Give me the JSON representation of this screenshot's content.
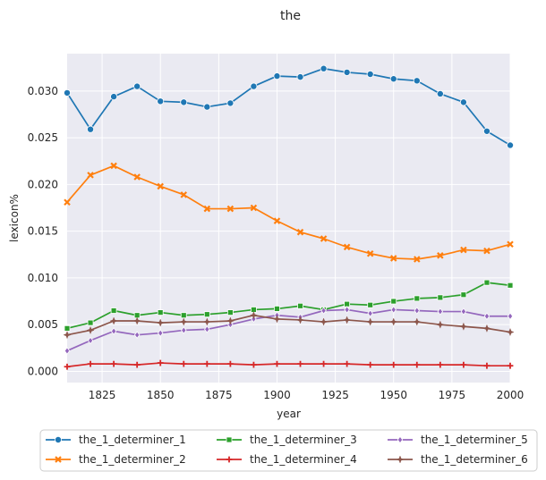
{
  "chart_data": {
    "type": "line",
    "title": "the",
    "xlabel": "year",
    "ylabel": "lexicon%",
    "xlim": [
      1810,
      2000
    ],
    "ylim": [
      -0.0012,
      0.034
    ],
    "xticks": [
      1825,
      1850,
      1875,
      1900,
      1925,
      1950,
      1975,
      2000
    ],
    "yticks": [
      0.0,
      0.005,
      0.01,
      0.015,
      0.02,
      0.025,
      0.03
    ],
    "ytick_labels": [
      "0.000",
      "0.005",
      "0.010",
      "0.015",
      "0.020",
      "0.025",
      "0.030"
    ],
    "grid": true,
    "legend_position": "below",
    "x": [
      1810,
      1820,
      1830,
      1840,
      1850,
      1860,
      1870,
      1880,
      1890,
      1900,
      1910,
      1920,
      1930,
      1940,
      1950,
      1960,
      1970,
      1980,
      1990,
      2000
    ],
    "series": [
      {
        "name": "the_1_determiner_1",
        "color": "#1f77b4",
        "marker": "circle",
        "values": [
          0.0298,
          0.0259,
          0.0294,
          0.0305,
          0.0289,
          0.0288,
          0.0283,
          0.0287,
          0.0305,
          0.0316,
          0.0315,
          0.0324,
          0.032,
          0.0318,
          0.0313,
          0.0311,
          0.0297,
          0.0288,
          0.0257,
          0.0242
        ]
      },
      {
        "name": "the_1_determiner_2",
        "color": "#ff7f0e",
        "marker": "x",
        "values": [
          0.0181,
          0.021,
          0.022,
          0.0208,
          0.0198,
          0.0189,
          0.0174,
          0.0174,
          0.0175,
          0.0161,
          0.0149,
          0.0142,
          0.0133,
          0.0126,
          0.0121,
          0.012,
          0.0124,
          0.013,
          0.0129,
          0.0136
        ]
      },
      {
        "name": "the_1_determiner_3",
        "color": "#2ca02c",
        "marker": "square",
        "values": [
          0.0046,
          0.0052,
          0.0065,
          0.006,
          0.0063,
          0.006,
          0.0061,
          0.0063,
          0.0066,
          0.0067,
          0.007,
          0.0066,
          0.0072,
          0.0071,
          0.0075,
          0.0078,
          0.0079,
          0.0082,
          0.0095,
          0.0092
        ]
      },
      {
        "name": "the_1_determiner_4",
        "color": "#d62728",
        "marker": "plus",
        "values": [
          0.0005,
          0.0008,
          0.0008,
          0.0007,
          0.0009,
          0.0008,
          0.0008,
          0.0008,
          0.0007,
          0.0008,
          0.0008,
          0.0008,
          0.0008,
          0.0007,
          0.0007,
          0.0007,
          0.0007,
          0.0007,
          0.0006,
          0.0006
        ]
      },
      {
        "name": "the_1_determiner_5",
        "color": "#9467bd",
        "marker": "diamond",
        "values": [
          0.0022,
          0.0033,
          0.0043,
          0.0039,
          0.0041,
          0.0044,
          0.0045,
          0.005,
          0.0056,
          0.006,
          0.0058,
          0.0065,
          0.0066,
          0.0062,
          0.0066,
          0.0065,
          0.0064,
          0.0064,
          0.0059,
          0.0059
        ]
      },
      {
        "name": "the_1_determiner_6",
        "color": "#8c564b",
        "marker": "star",
        "values": [
          0.0039,
          0.0044,
          0.0054,
          0.0054,
          0.0052,
          0.0053,
          0.0053,
          0.0054,
          0.006,
          0.0056,
          0.0055,
          0.0053,
          0.0055,
          0.0053,
          0.0053,
          0.0053,
          0.005,
          0.0048,
          0.0046,
          0.0042
        ]
      }
    ]
  }
}
